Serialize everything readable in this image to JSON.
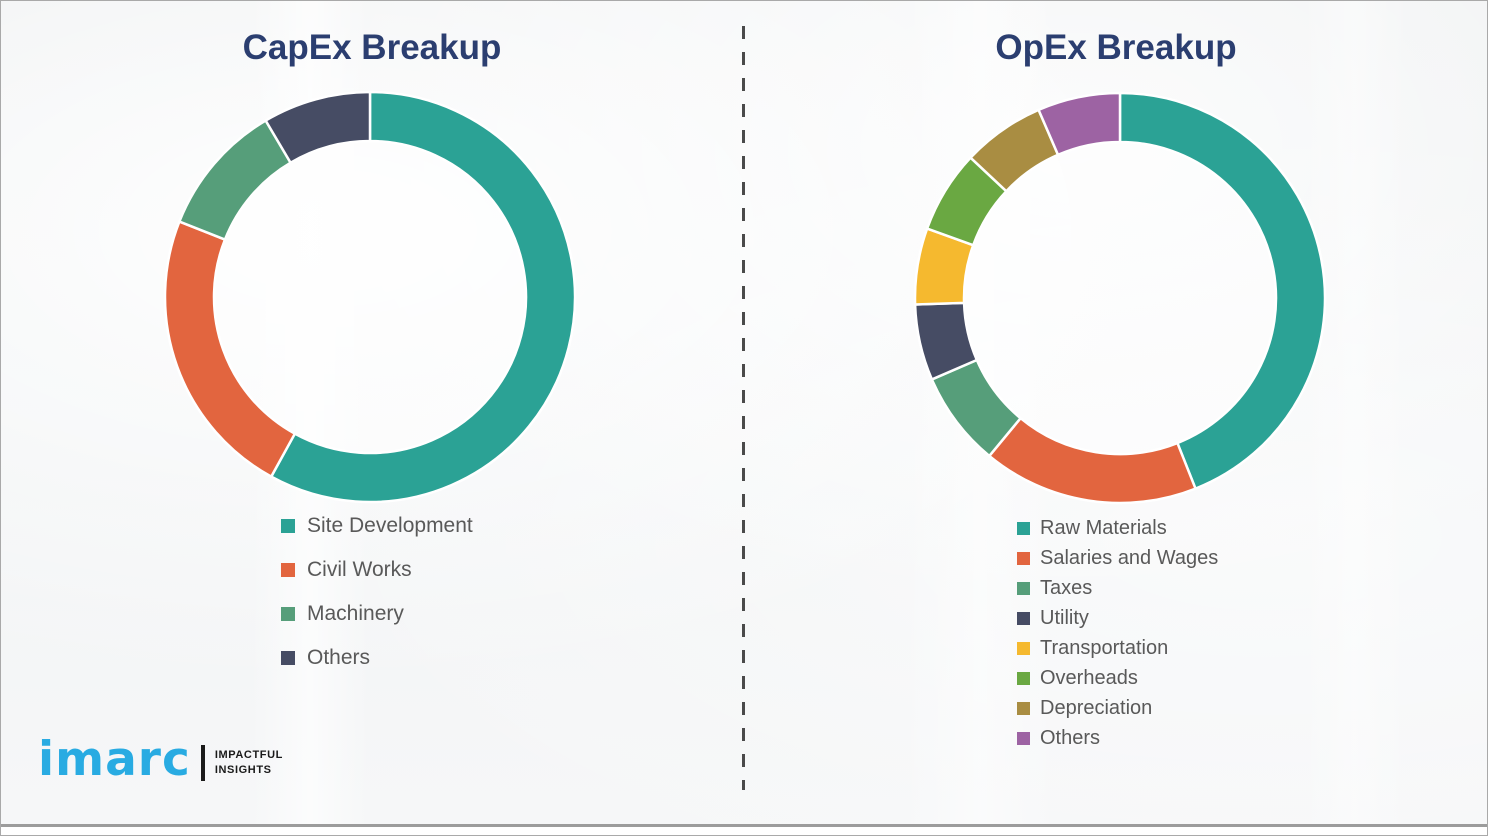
{
  "chart_data": [
    {
      "type": "pie",
      "variant": "donut",
      "title": "CapEx Breakup",
      "categories": [
        "Site Development",
        "Civil Works",
        "Machinery",
        "Others"
      ],
      "values": [
        58,
        23,
        10.5,
        8.5
      ],
      "unit": "percent-estimated-from-arc-angles",
      "colors": [
        "#2BA295",
        "#E2653F",
        "#569E7A",
        "#464C64"
      ],
      "start_angle_deg": 0,
      "direction": "clockwise",
      "value_labels_visible": false,
      "legend_position": "below-chart-left"
    },
    {
      "type": "pie",
      "variant": "donut",
      "title": "OpEx Breakup",
      "categories": [
        "Raw Materials",
        "Salaries and Wages",
        "Taxes",
        "Utility",
        "Transportation",
        "Overheads",
        "Depreciation",
        "Others"
      ],
      "values": [
        44,
        17,
        7.5,
        6,
        6,
        6.5,
        6.5,
        6.5
      ],
      "unit": "percent-estimated-from-arc-angles",
      "colors": [
        "#2BA295",
        "#E2653F",
        "#569E7A",
        "#464C64",
        "#F5B92F",
        "#6AA842",
        "#A98D42",
        "#9D63A3"
      ],
      "start_angle_deg": 0,
      "direction": "clockwise",
      "value_labels_visible": false,
      "legend_position": "below-chart-left"
    }
  ],
  "logo": {
    "brand": "imarc",
    "tagline": [
      "IMPACTFUL",
      "INSIGHTS"
    ],
    "brand_color": "#29ABE2"
  },
  "theme": {
    "title_color": "#2B3E70",
    "legend_text_color": "#595959",
    "background_color": "#EFF1F2",
    "divider_color": "#4A4A4A",
    "slice_gap_color": "#FFFFFF"
  }
}
